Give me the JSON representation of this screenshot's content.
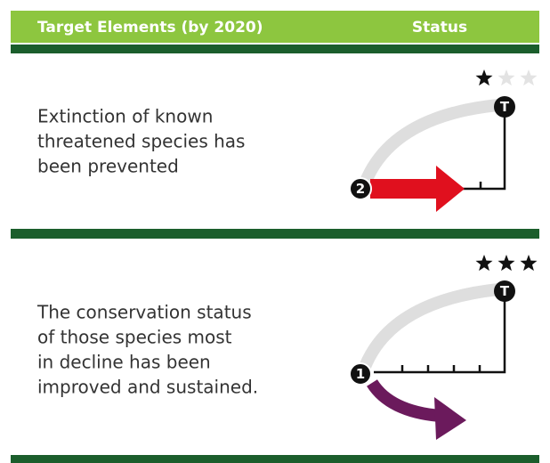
{
  "header": {
    "title": "Target Elements (by 2020)",
    "status": "Status"
  },
  "rows": [
    {
      "lines": [
        "Extinction of known",
        "threatened species has",
        "been prevented"
      ],
      "rating": 1,
      "rating_max": 3,
      "start": "2",
      "target": "T"
    },
    {
      "lines": [
        "The conservation status",
        "of those species most",
        "in decline has been",
        "improved and sustained."
      ],
      "rating": 3,
      "rating_max": 3,
      "start": "1",
      "target": "T"
    }
  ]
}
